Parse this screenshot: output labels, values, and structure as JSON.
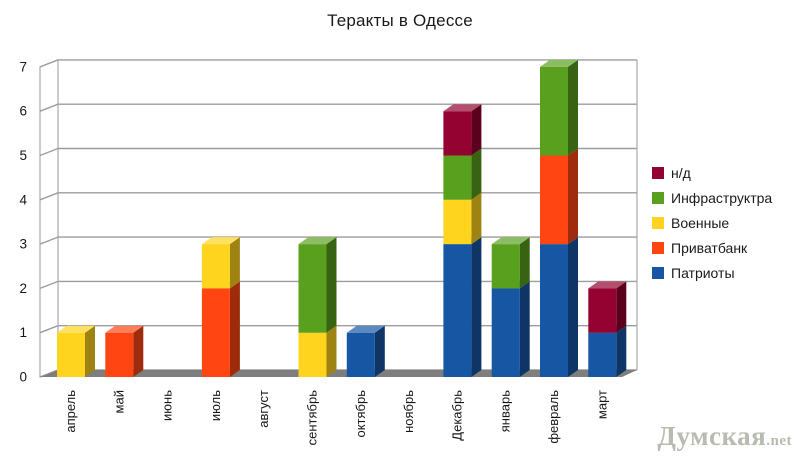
{
  "chart_data": {
    "type": "bar",
    "stacked": true,
    "style": "3d",
    "title": "Теракты в Одессе",
    "categories": [
      "апрель",
      "май",
      "июнь",
      "июль",
      "август",
      "сентябрь",
      "октябрь",
      "ноябрь",
      "Декабрь",
      "январь",
      "февраль",
      "март"
    ],
    "series": [
      {
        "name": "Патриоты",
        "color": "#1656A3",
        "values": [
          0,
          0,
          0,
          0,
          0,
          0,
          1,
          0,
          3,
          2,
          3,
          1
        ]
      },
      {
        "name": "Приватбанк",
        "color": "#FF4512",
        "values": [
          0,
          1,
          0,
          2,
          0,
          0,
          0,
          0,
          0,
          0,
          2,
          0
        ]
      },
      {
        "name": "Военные",
        "color": "#FFD41F",
        "values": [
          1,
          0,
          0,
          1,
          0,
          1,
          0,
          0,
          1,
          0,
          0,
          0
        ]
      },
      {
        "name": "Инфраструктра",
        "color": "#59A01E",
        "values": [
          0,
          0,
          0,
          0,
          0,
          2,
          0,
          0,
          1,
          1,
          2,
          0
        ]
      },
      {
        "name": "н/д",
        "color": "#930230",
        "values": [
          0,
          0,
          0,
          0,
          0,
          0,
          0,
          0,
          1,
          0,
          0,
          1
        ]
      }
    ],
    "totals": [
      1,
      1,
      0,
      3,
      0,
      3,
      1,
      0,
      6,
      3,
      7,
      2
    ],
    "ylim": [
      0,
      7
    ],
    "yticks": [
      "0",
      "1",
      "2",
      "3",
      "4",
      "5",
      "6",
      "7"
    ],
    "grid": true,
    "legend_position": "right",
    "legend": [
      {
        "label": "н/д",
        "color": "#930230"
      },
      {
        "label": "Инфраструктра",
        "color": "#59A01E"
      },
      {
        "label": "Военные",
        "color": "#FFD41F"
      },
      {
        "label": "Приватбанк",
        "color": "#FF4512"
      },
      {
        "label": "Патриоты",
        "color": "#1656A3"
      }
    ],
    "colors": {
      "floor": "#7E7E7E",
      "gridline": "#9C9C9C",
      "wall_outline": "#ABABAB",
      "background": "#FFFFFF"
    }
  },
  "watermark": {
    "site": "Думская",
    "domain": ".net"
  }
}
